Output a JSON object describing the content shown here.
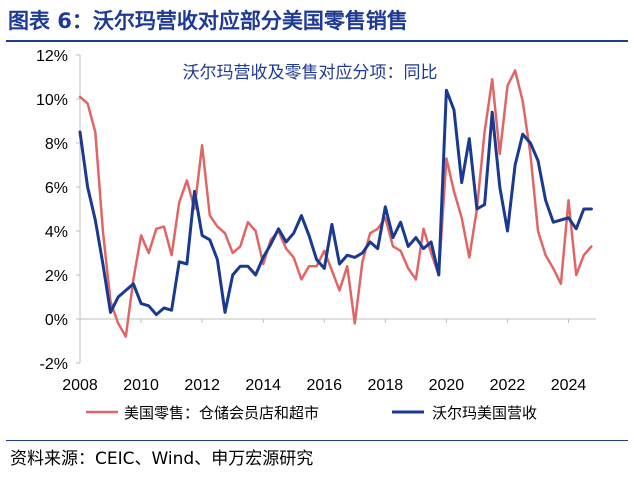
{
  "figure": {
    "title": "图表 6：沃尔玛营收对应部分美国零售销售",
    "source": "资料来源：CEIC、Wind、申万宏源研究",
    "accent_color": "#1f3a93"
  },
  "chart_data": {
    "type": "line",
    "title": "沃尔玛营收及零售对应分项：同比",
    "xlabel": "",
    "ylabel": "",
    "x_ticks": [
      "2008",
      "2010",
      "2012",
      "2014",
      "2016",
      "2018",
      "2020",
      "2022",
      "2024"
    ],
    "x_range": [
      2008,
      2024.9
    ],
    "y_ticks": [
      "-2%",
      "0%",
      "2%",
      "4%",
      "6%",
      "8%",
      "10%",
      "12%"
    ],
    "ylim": [
      -2,
      12
    ],
    "grid": false,
    "legend_position": "bottom",
    "series": [
      {
        "name": "美国零售：仓储会员店和超市",
        "color": "#e06666",
        "x": [
          2008.0,
          2008.25,
          2008.5,
          2008.75,
          2009.0,
          2009.25,
          2009.5,
          2009.75,
          2010.0,
          2010.25,
          2010.5,
          2010.75,
          2011.0,
          2011.25,
          2011.5,
          2011.75,
          2012.0,
          2012.25,
          2012.5,
          2012.75,
          2013.0,
          2013.25,
          2013.5,
          2013.75,
          2014.0,
          2014.25,
          2014.5,
          2014.75,
          2015.0,
          2015.25,
          2015.5,
          2015.75,
          2016.0,
          2016.25,
          2016.5,
          2016.75,
          2017.0,
          2017.25,
          2017.5,
          2017.75,
          2018.0,
          2018.25,
          2018.5,
          2018.75,
          2019.0,
          2019.25,
          2019.5,
          2019.75,
          2020.0,
          2020.25,
          2020.5,
          2020.75,
          2021.0,
          2021.25,
          2021.5,
          2021.75,
          2022.0,
          2022.25,
          2022.5,
          2022.75,
          2023.0,
          2023.25,
          2023.5,
          2023.75,
          2024.0,
          2024.25,
          2024.5,
          2024.75
        ],
        "values": [
          10.1,
          9.8,
          8.5,
          4.0,
          0.8,
          -0.2,
          -0.8,
          1.8,
          3.8,
          3.0,
          4.1,
          4.2,
          2.9,
          5.3,
          6.3,
          5.0,
          7.9,
          4.7,
          4.2,
          3.9,
          3.0,
          3.3,
          4.4,
          4.0,
          2.5,
          3.6,
          4.0,
          3.2,
          2.8,
          1.8,
          2.4,
          2.4,
          3.1,
          2.2,
          1.3,
          2.4,
          -0.2,
          2.6,
          3.9,
          4.1,
          4.6,
          3.3,
          3.1,
          2.3,
          1.8,
          4.1,
          3.0,
          2.0,
          7.3,
          5.8,
          4.6,
          2.8,
          5.0,
          8.5,
          10.9,
          7.5,
          10.6,
          11.3,
          9.9,
          7.5,
          4.0,
          2.9,
          2.3,
          1.6,
          5.4,
          2.0,
          2.9,
          3.3
        ]
      },
      {
        "name": "沃尔玛美国营收",
        "color": "#1a3a8f",
        "x": [
          2008.0,
          2008.25,
          2008.5,
          2008.75,
          2009.0,
          2009.25,
          2009.5,
          2009.75,
          2010.0,
          2010.25,
          2010.5,
          2010.75,
          2011.0,
          2011.25,
          2011.5,
          2011.75,
          2012.0,
          2012.25,
          2012.5,
          2012.75,
          2013.0,
          2013.25,
          2013.5,
          2013.75,
          2014.0,
          2014.25,
          2014.5,
          2014.75,
          2015.0,
          2015.25,
          2015.5,
          2015.75,
          2016.0,
          2016.25,
          2016.5,
          2016.75,
          2017.0,
          2017.25,
          2017.5,
          2017.75,
          2018.0,
          2018.25,
          2018.5,
          2018.75,
          2019.0,
          2019.25,
          2019.5,
          2019.75,
          2020.0,
          2020.25,
          2020.5,
          2020.75,
          2021.0,
          2021.25,
          2021.5,
          2021.75,
          2022.0,
          2022.25,
          2022.5,
          2022.75,
          2023.0,
          2023.25,
          2023.5,
          2023.75,
          2024.0,
          2024.25,
          2024.5,
          2024.75
        ],
        "values": [
          8.5,
          6.0,
          4.5,
          2.5,
          0.3,
          1.0,
          1.3,
          1.6,
          0.7,
          0.6,
          0.2,
          0.5,
          0.4,
          2.6,
          2.5,
          5.8,
          3.8,
          3.6,
          2.7,
          0.3,
          2.0,
          2.4,
          2.4,
          2.0,
          2.8,
          3.4,
          4.1,
          3.5,
          3.9,
          4.7,
          3.8,
          2.7,
          2.3,
          4.3,
          2.5,
          2.9,
          2.8,
          3.0,
          3.5,
          3.2,
          5.1,
          3.7,
          4.4,
          3.3,
          3.7,
          3.2,
          3.5,
          2.0,
          10.4,
          9.5,
          6.2,
          8.2,
          5.0,
          5.2,
          9.4,
          6.0,
          4.0,
          7.0,
          8.4,
          8.0,
          7.2,
          5.4,
          4.4,
          4.5,
          4.6,
          4.1,
          5.0,
          5.0
        ]
      }
    ]
  }
}
